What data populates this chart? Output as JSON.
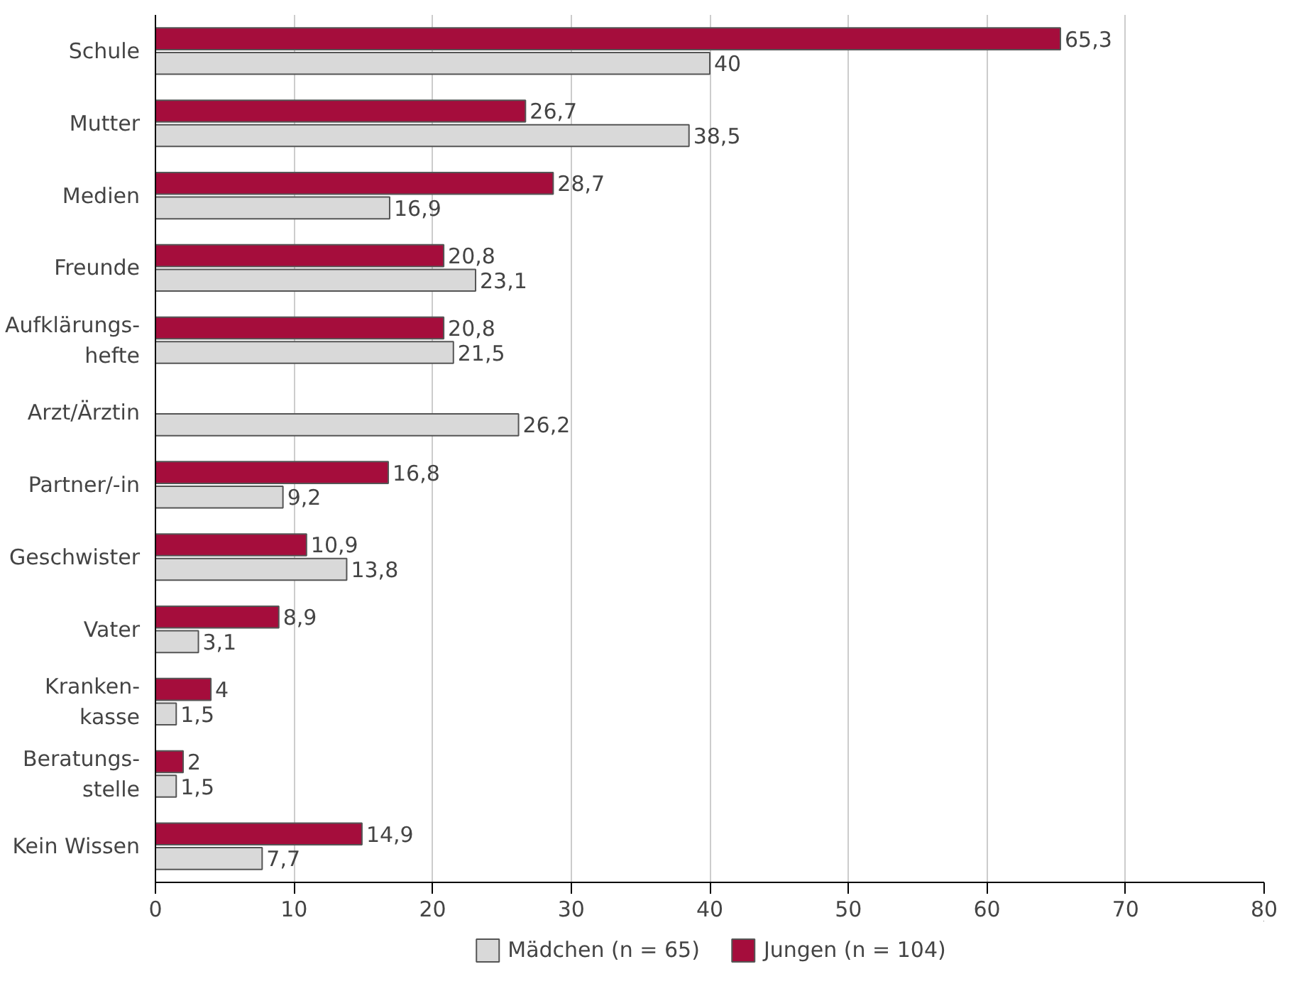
{
  "chart_data": {
    "type": "bar",
    "orientation": "horizontal",
    "categories": [
      "Schule",
      "Mutter",
      "Medien",
      "Freunde",
      "Aufklärungs-\nhefte",
      "Arzt/Ärztin",
      "Partner/-in",
      "Geschwister",
      "Vater",
      "Kranken-\nkasse",
      "Beratungs-\nstelle",
      "Kein Wissen"
    ],
    "series": [
      {
        "name": "Mädchen (n = 65)",
        "color": "#d9d9d9",
        "values": [
          40,
          38.5,
          16.9,
          23.1,
          21.5,
          26.2,
          9.2,
          13.8,
          3.1,
          1.5,
          1.5,
          7.7
        ],
        "value_labels": [
          "40",
          "38,5",
          "16,9",
          "23,1",
          "21,5",
          "26,2",
          "9,2",
          "13,8",
          "3,1",
          "1,5",
          "1,5",
          "7,7"
        ]
      },
      {
        "name": "Jungen (n = 104)",
        "color": "#a50d3c",
        "values": [
          65.3,
          26.7,
          28.7,
          20.8,
          20.8,
          null,
          16.8,
          10.9,
          8.9,
          4,
          2,
          14.9
        ],
        "value_labels": [
          "65,3",
          "26,7",
          "28,7",
          "20,8",
          "20,8",
          null,
          "16,8",
          "10,9",
          "8,9",
          "4",
          "2",
          "14,9"
        ]
      }
    ],
    "xlim": [
      0,
      80
    ],
    "xticks": [
      0,
      10,
      20,
      30,
      40,
      50,
      60,
      70,
      80
    ],
    "grid": "x",
    "legend": "bottom"
  }
}
